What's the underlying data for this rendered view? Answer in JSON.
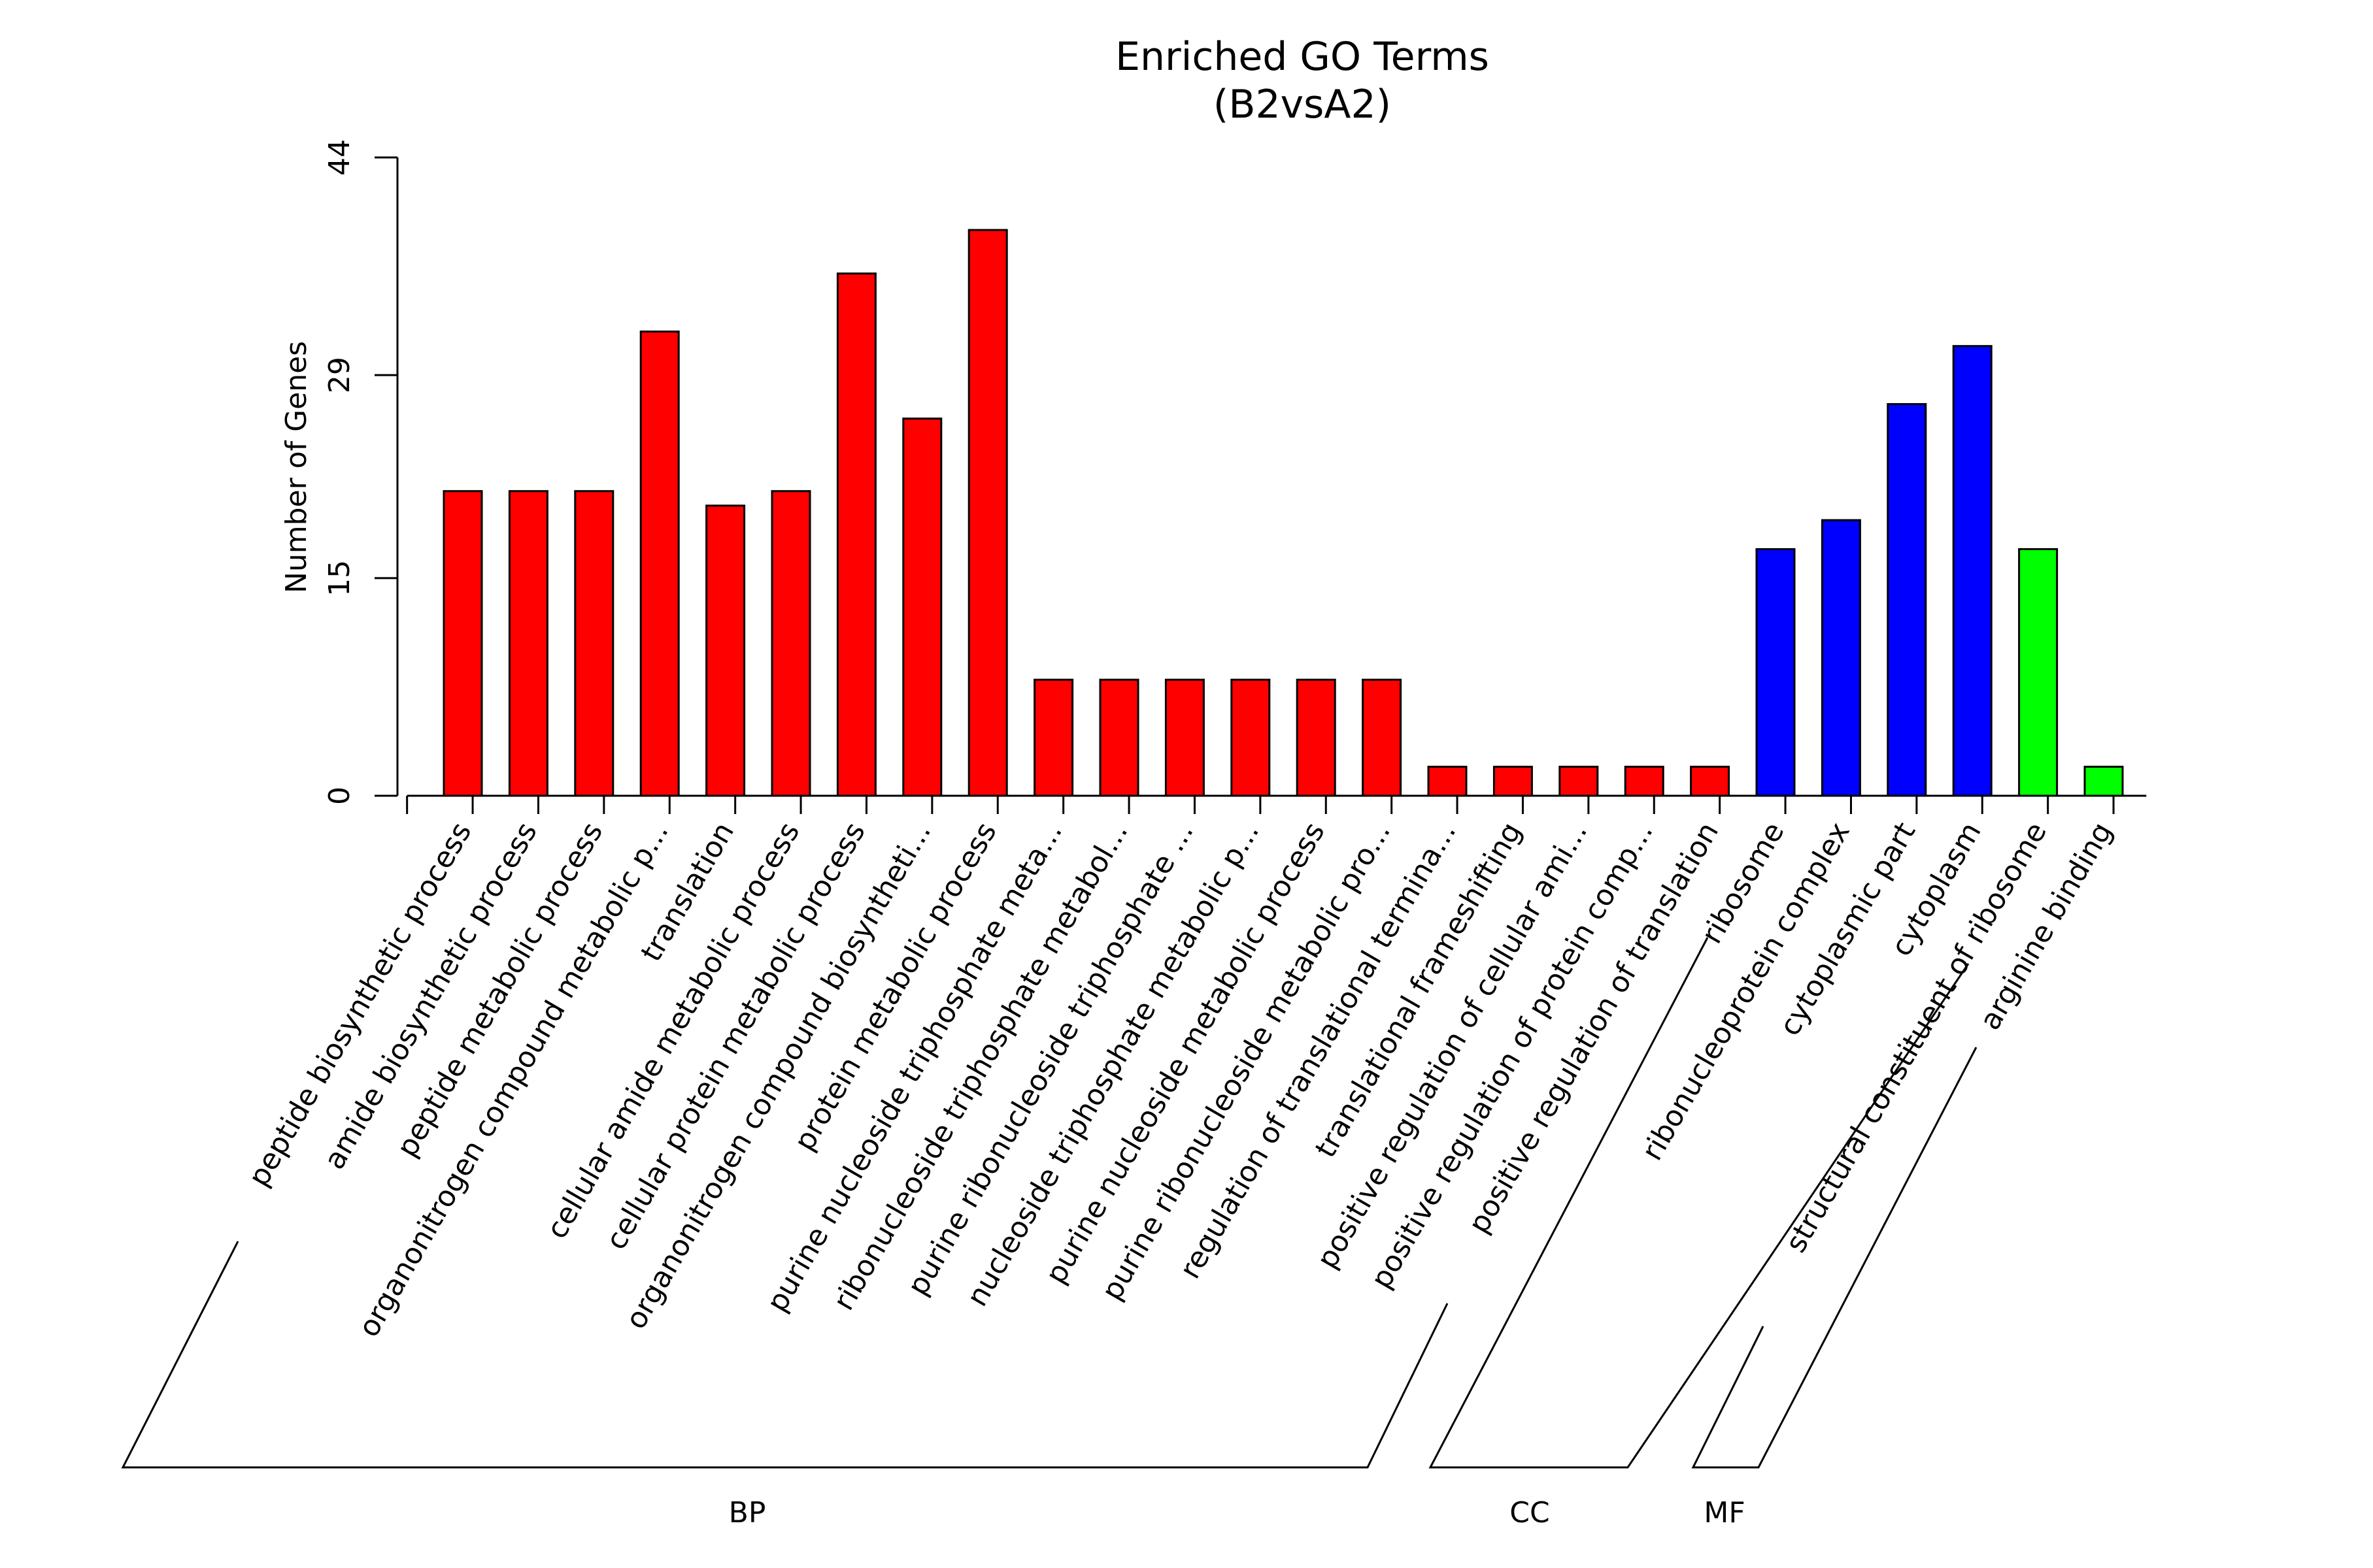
{
  "chart_data": {
    "type": "bar",
    "title": "Enriched GO Terms",
    "subtitle": "(B2vsA2)",
    "xlabel": "",
    "ylabel": "Number of Genes",
    "ylim": [
      0,
      44
    ],
    "yticks": [
      "0",
      "15",
      "29",
      "44"
    ],
    "grid": false,
    "colors": {
      "BP": "#ff0000",
      "CC": "#0000ff",
      "MF": "#00ff00",
      "outline": "#000000"
    },
    "categories": [
      "peptide biosynthetic process",
      "amide biosynthetic process",
      "peptide metabolic process",
      "organonitrogen compound metabolic p...",
      "translation",
      "cellular amide metabolic process",
      "cellular protein metabolic process",
      "organonitrogen compound biosyntheti...",
      "protein metabolic process",
      "purine nucleoside triphosphate meta...",
      "ribonucleoside triphosphate metabol...",
      "purine ribonucleoside triphosphate ...",
      "nucleoside triphosphate metabolic p...",
      "purine nucleoside metabolic process",
      "purine ribonucleoside metabolic pro...",
      "regulation of translational termina...",
      "translational frameshifting",
      "positive regulation of cellular ami...",
      "positive regulation of protein comp...",
      "positive regulation of translation",
      "ribosome",
      "ribonucleoprotein complex",
      "cytoplasmic part",
      "cytoplasm",
      "structural constituent of ribosome",
      "arginine binding"
    ],
    "values": [
      21,
      21,
      21,
      32,
      20,
      21,
      36,
      26,
      39,
      8,
      8,
      8,
      8,
      8,
      8,
      2,
      2,
      2,
      2,
      2,
      17,
      19,
      27,
      31,
      17,
      2
    ],
    "groups": [
      {
        "name": "BP",
        "start": 0,
        "end": 19
      },
      {
        "name": "CC",
        "start": 20,
        "end": 23
      },
      {
        "name": "MF",
        "start": 24,
        "end": 25
      }
    ]
  }
}
